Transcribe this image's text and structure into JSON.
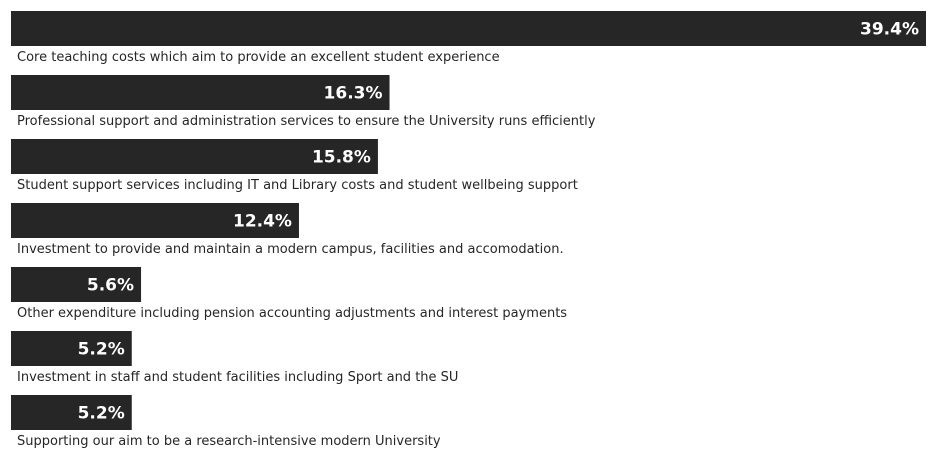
{
  "chart_data": {
    "type": "bar",
    "orientation": "horizontal",
    "categories": [
      "Core teaching costs which aim to provide an excellent student experience",
      "Professional support and administration services to ensure the University runs efficiently",
      "Student support services including IT and Library costs and student wellbeing support",
      "Investment to provide and maintain a modern campus, facilities and accomodation.",
      "Other expenditure including pension accounting adjustments and interest payments",
      "Investment in staff and student facilities including Sport and the SU",
      "Supporting our aim to be a research-intensive modern University"
    ],
    "values": [
      39.4,
      16.3,
      15.8,
      12.4,
      5.6,
      5.2,
      5.2
    ],
    "value_labels": [
      "39.4%",
      "16.3%",
      "15.8%",
      "12.4%",
      "5.6%",
      "5.2%",
      "5.2%"
    ],
    "title": "",
    "xlabel": "",
    "ylabel": "",
    "xlim": [
      0,
      39.4
    ],
    "grid": false,
    "legend": "none",
    "bar_color": "#262626",
    "value_label_color": "#ffffff",
    "category_label_color": "#262626"
  }
}
